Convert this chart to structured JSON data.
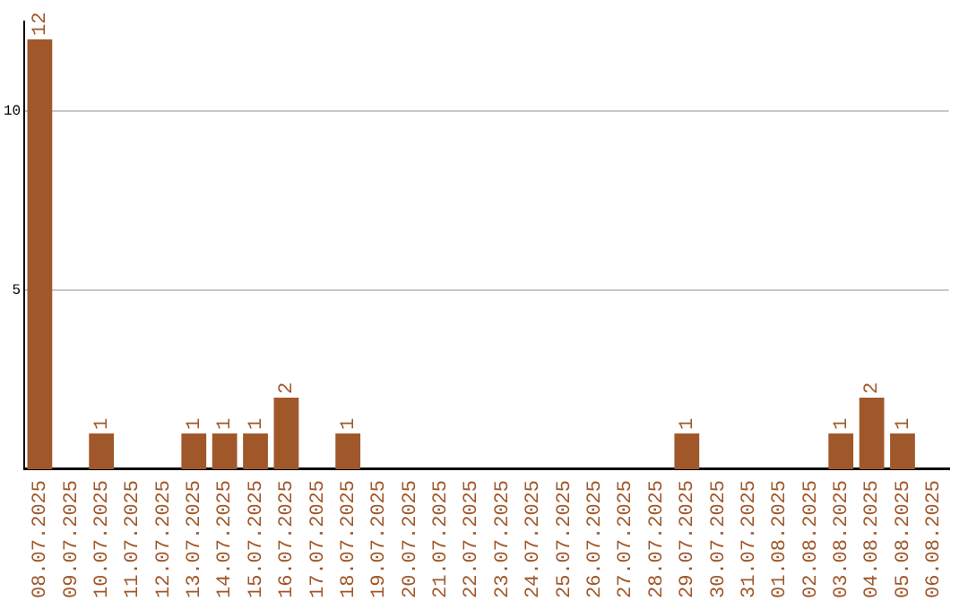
{
  "chart_data": {
    "type": "bar",
    "categories": [
      "08.07.2025",
      "09.07.2025",
      "10.07.2025",
      "11.07.2025",
      "12.07.2025",
      "13.07.2025",
      "14.07.2025",
      "15.07.2025",
      "16.07.2025",
      "17.07.2025",
      "18.07.2025",
      "19.07.2025",
      "20.07.2025",
      "21.07.2025",
      "22.07.2025",
      "23.07.2025",
      "24.07.2025",
      "25.07.2025",
      "26.07.2025",
      "27.07.2025",
      "28.07.2025",
      "29.07.2025",
      "30.07.2025",
      "31.07.2025",
      "01.08.2025",
      "02.08.2025",
      "03.08.2025",
      "04.08.2025",
      "05.08.2025",
      "06.08.2025"
    ],
    "values": [
      12,
      0,
      1,
      0,
      0,
      1,
      1,
      1,
      2,
      0,
      1,
      0,
      0,
      0,
      0,
      0,
      0,
      0,
      0,
      0,
      0,
      1,
      0,
      0,
      0,
      0,
      1,
      2,
      1,
      0
    ],
    "value_labels": [
      "12",
      null,
      "1",
      null,
      null,
      "1",
      "1",
      "1",
      "2",
      null,
      "1",
      null,
      null,
      null,
      null,
      null,
      null,
      null,
      null,
      null,
      null,
      "1",
      null,
      null,
      null,
      null,
      "1",
      "2",
      "1",
      null
    ],
    "color": "#a0582a",
    "ylim": [
      0,
      12.5
    ],
    "yticks": [
      5,
      10
    ],
    "grid": "y",
    "legend": false
  }
}
